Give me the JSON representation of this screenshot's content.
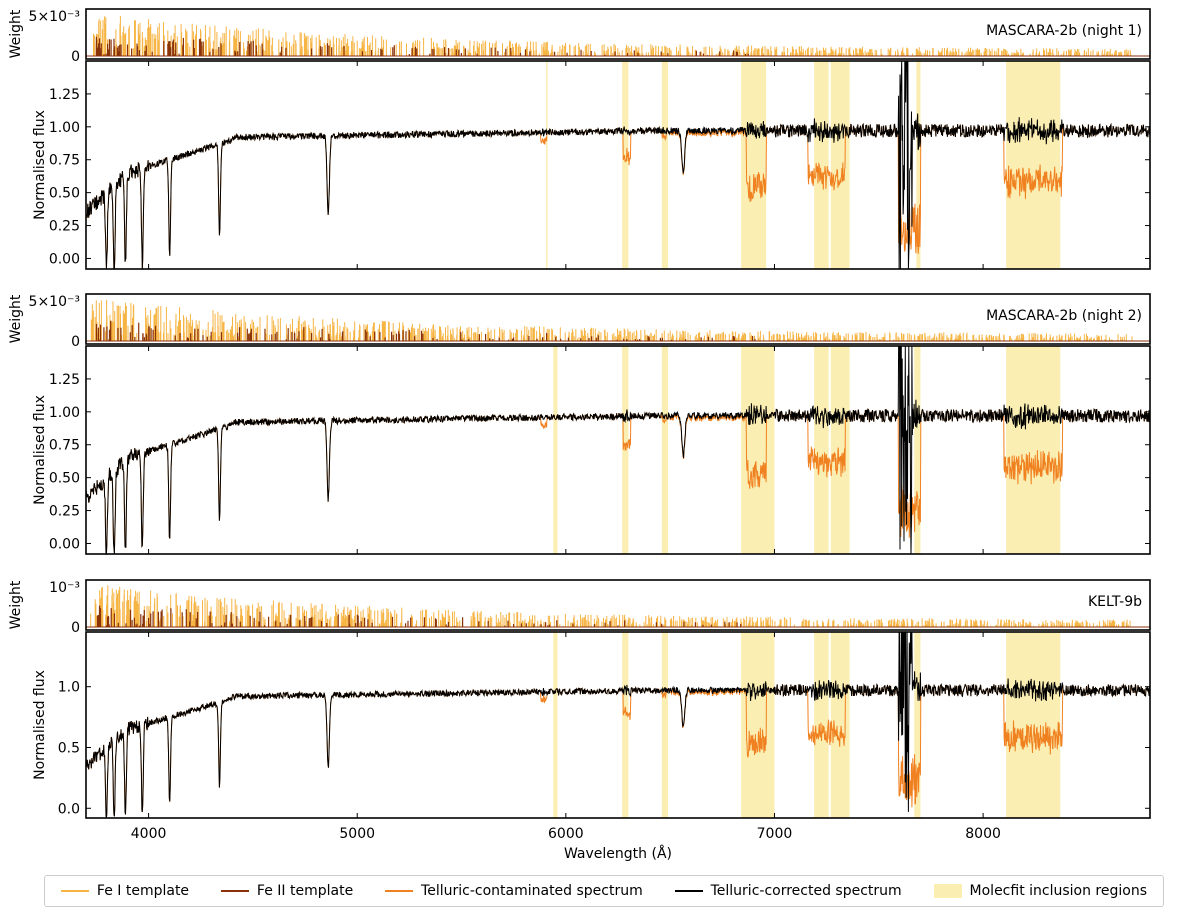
{
  "colors": {
    "fe1": "#f6b443",
    "fe2": "#8a3208",
    "telluric_contaminated": "#f08120",
    "telluric_corrected": "#000000",
    "molecfit": "#fbeeb2"
  },
  "chart_data": {
    "type": "line",
    "xlabel": "Wavelength (Å)",
    "xlim": [
      3700,
      8800
    ],
    "x_ticks": [
      4000,
      5000,
      6000,
      7000,
      8000
    ],
    "legend": {
      "placement": "bottom",
      "entries": [
        {
          "label": "Fe I template",
          "kind": "line",
          "color_key": "fe1"
        },
        {
          "label": "Fe II template",
          "kind": "line",
          "color_key": "fe2"
        },
        {
          "label": "Telluric-contaminated spectrum",
          "kind": "line",
          "color_key": "telluric_contaminated"
        },
        {
          "label": "Telluric-corrected spectrum",
          "kind": "line",
          "color_key": "telluric_corrected"
        },
        {
          "label": "Molecfit inclusion regions",
          "kind": "box",
          "color_key": "molecfit"
        }
      ]
    },
    "stellar_lines": [
      {
        "x": 3798,
        "depth": 0.6
      },
      {
        "x": 3835,
        "depth": 0.65
      },
      {
        "x": 3889,
        "depth": 0.7
      },
      {
        "x": 3970,
        "depth": 0.75
      },
      {
        "x": 4101,
        "depth": 0.72
      },
      {
        "x": 4340,
        "depth": 0.7
      },
      {
        "x": 4861,
        "depth": 0.6
      },
      {
        "x": 6563,
        "depth": 0.3
      }
    ],
    "panels": [
      {
        "name": "MASCARA-2b (night 1)",
        "weight_ylabel": "Weight",
        "weight_tick_labels": [
          "5×10⁻³",
          "0"
        ],
        "flux_ylabel": "Normalised flux",
        "flux_ylim": [
          -0.08,
          1.5
        ],
        "flux_ticks": [
          0.0,
          0.25,
          0.5,
          0.75,
          1.0,
          1.25
        ],
        "flux_tick_labels": [
          "0.00",
          "0.25",
          "0.50",
          "0.75",
          "1.00",
          "1.25"
        ],
        "molecfit_regions": [
          [
            5905,
            5912
          ],
          [
            6270,
            6300
          ],
          [
            6460,
            6490
          ],
          [
            6840,
            6960
          ],
          [
            7190,
            7260
          ],
          [
            7270,
            7360
          ],
          [
            7680,
            7700
          ],
          [
            8110,
            8370
          ]
        ]
      },
      {
        "name": "MASCARA-2b (night 2)",
        "weight_ylabel": "Weight",
        "weight_tick_labels": [
          "5×10⁻³",
          "0"
        ],
        "flux_ylabel": "Normalised flux",
        "flux_ylim": [
          -0.08,
          1.5
        ],
        "flux_ticks": [
          0.0,
          0.25,
          0.5,
          0.75,
          1.0,
          1.25
        ],
        "flux_tick_labels": [
          "0.00",
          "0.25",
          "0.50",
          "0.75",
          "1.00",
          "1.25"
        ],
        "molecfit_regions": [
          [
            5940,
            5960
          ],
          [
            6270,
            6300
          ],
          [
            6460,
            6490
          ],
          [
            6840,
            7000
          ],
          [
            7190,
            7260
          ],
          [
            7270,
            7360
          ],
          [
            7670,
            7700
          ],
          [
            8110,
            8370
          ]
        ]
      },
      {
        "name": "KELT-9b",
        "weight_ylabel": "Weight",
        "weight_tick_labels": [
          "10⁻³",
          "0"
        ],
        "flux_ylabel": "Normalised flux",
        "flux_ylim": [
          -0.08,
          1.45
        ],
        "flux_ticks": [
          0.0,
          0.5,
          1.0
        ],
        "flux_tick_labels": [
          "0.0",
          "0.5",
          "1.0"
        ],
        "molecfit_regions": [
          [
            5940,
            5960
          ],
          [
            6270,
            6300
          ],
          [
            6460,
            6490
          ],
          [
            6840,
            7000
          ],
          [
            7190,
            7260
          ],
          [
            7270,
            7360
          ],
          [
            7670,
            7700
          ],
          [
            8110,
            8370
          ]
        ]
      }
    ]
  }
}
